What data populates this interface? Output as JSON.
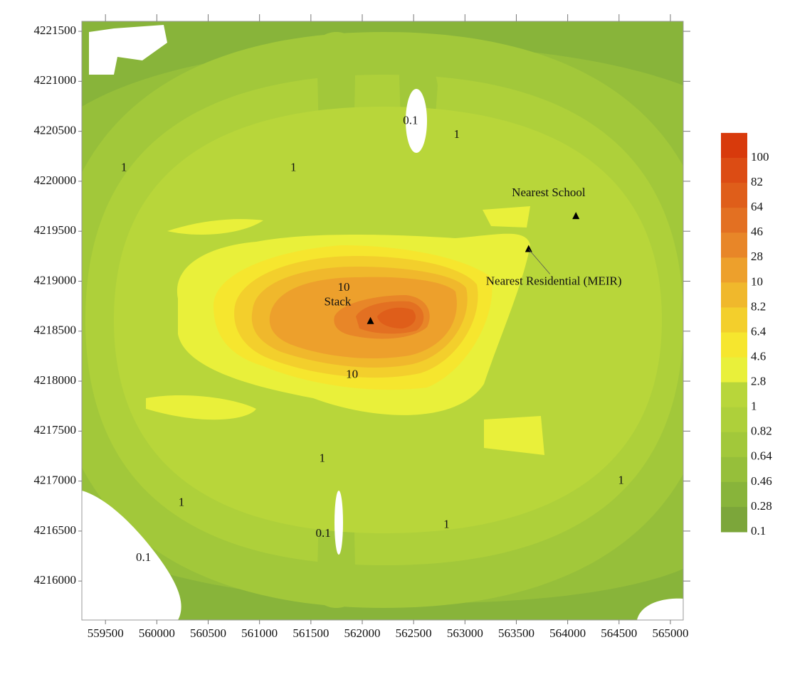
{
  "chart_data": {
    "type": "contour",
    "xlim": [
      559270,
      565125
    ],
    "ylim": [
      4215610,
      4221600
    ],
    "xticks": [
      559500,
      560000,
      560500,
      561000,
      561500,
      562000,
      562500,
      563000,
      563500,
      564000,
      564500,
      565000
    ],
    "yticks": [
      4216000,
      4216500,
      4217000,
      4217500,
      4218000,
      4218500,
      4219000,
      4219500,
      4220000,
      4220500,
      4221000,
      4221500
    ],
    "levels": [
      100,
      82,
      64,
      46,
      28,
      10,
      8.2,
      6.4,
      4.6,
      2.8,
      1,
      0.82,
      0.64,
      0.46,
      0.28,
      0.1
    ],
    "colors": [
      "#d83a0c",
      "#dc4c14",
      "#df5e1a",
      "#e37022",
      "#e88628",
      "#eda02c",
      "#f0b82c",
      "#f3cf2c",
      "#f6e62e",
      "#e9f03a",
      "#b8d63a",
      "#aed03a",
      "#a2c83a",
      "#96bf3a",
      "#88b43a",
      "#7ca63a"
    ],
    "markers": [
      {
        "label": "Stack",
        "x": 562080,
        "y": 4218600
      },
      {
        "label": "Nearest School",
        "x": 564080,
        "y": 4219650
      },
      {
        "label": "Nearest Residential (MEIR)",
        "x": 563620,
        "y": 4219320
      }
    ],
    "contour_labels": [
      {
        "level": 10,
        "x": 561820,
        "y": 4218930
      },
      {
        "level": 10,
        "x": 561900,
        "y": 4218060
      },
      {
        "level": 1,
        "x": 559680,
        "y": 4220130
      },
      {
        "level": 1,
        "x": 561330,
        "y": 4220130
      },
      {
        "level": 1,
        "x": 562920,
        "y": 4220460
      },
      {
        "level": 1,
        "x": 561610,
        "y": 4217220
      },
      {
        "level": 1,
        "x": 560240,
        "y": 4216780
      },
      {
        "level": 1,
        "x": 562820,
        "y": 4216560
      },
      {
        "level": 1,
        "x": 564520,
        "y": 4217000
      },
      {
        "level": 0.1,
        "x": 562470,
        "y": 4220600
      },
      {
        "level": 0.1,
        "x": 561620,
        "y": 4216470
      },
      {
        "level": 0.1,
        "x": 559870,
        "y": 4216230
      }
    ]
  }
}
